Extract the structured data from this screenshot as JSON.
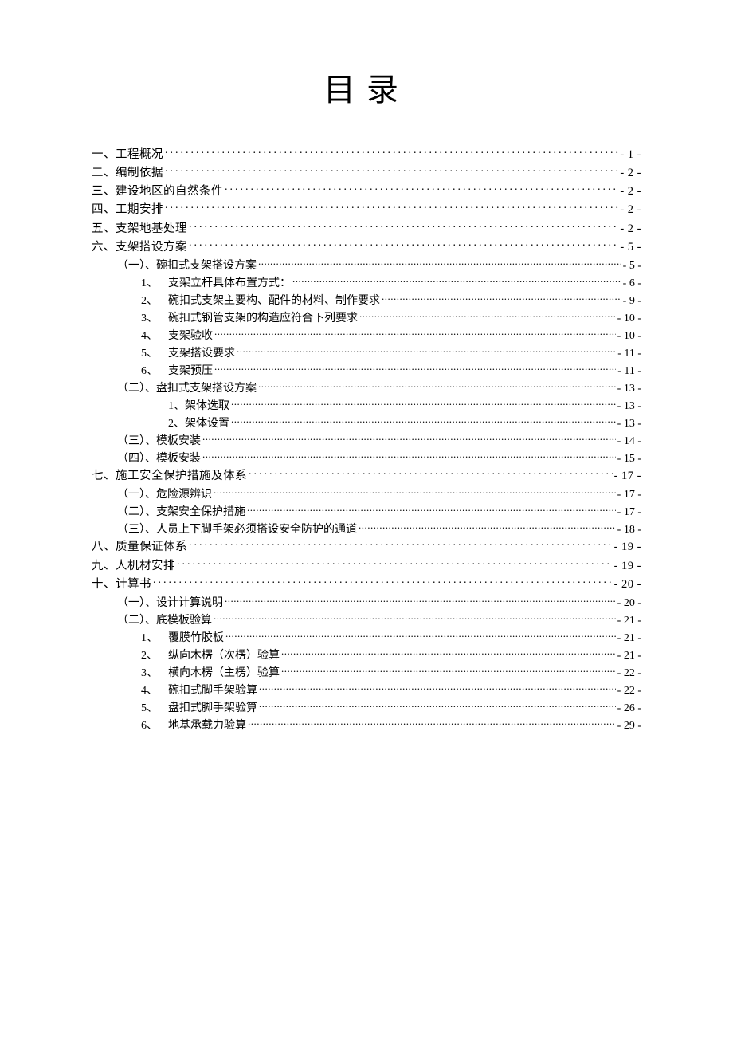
{
  "title": "目录",
  "entries": [
    {
      "level": "l1",
      "label": "一、工程概况",
      "page": "- 1 -"
    },
    {
      "level": "l1",
      "label": "二、编制依据",
      "page": "- 2 -"
    },
    {
      "level": "l1",
      "label": "三、建设地区的自然条件",
      "page": "- 2 -"
    },
    {
      "level": "l1",
      "label": "四、工期安排",
      "page": "- 2 -"
    },
    {
      "level": "l1",
      "label": "五、支架地基处理",
      "page": "- 2 -"
    },
    {
      "level": "l1",
      "label": "六、支架搭设方案",
      "page": "- 5 -"
    },
    {
      "level": "l2",
      "marker": "（一）、",
      "label": "碗扣式支架搭设方案",
      "page": "- 5 -"
    },
    {
      "level": "l3",
      "marker": "1、",
      "label": "支架立杆具体布置方式：",
      "page": "- 6 -"
    },
    {
      "level": "l3",
      "marker": "2、",
      "label": "碗扣式支架主要构、配件的材料、制作要求",
      "page": "- 9 -"
    },
    {
      "level": "l3",
      "marker": "3、",
      "label": "碗扣式钢管支架的构造应符合下列要求",
      "page": "- 10 -"
    },
    {
      "level": "l3",
      "marker": "4、",
      "label": "支架验收",
      "page": "- 10 -"
    },
    {
      "level": "l3",
      "marker": "5、",
      "label": "支架搭设要求",
      "page": "- 11 -"
    },
    {
      "level": "l3",
      "marker": "6、",
      "label": "支架预压",
      "page": "- 11 -"
    },
    {
      "level": "l2",
      "marker": "（二）、",
      "label": "盘扣式支架搭设方案",
      "page": "- 13 -"
    },
    {
      "level": "l2n",
      "marker": "",
      "label": "1、架体选取",
      "page": "- 13 -"
    },
    {
      "level": "l2n",
      "marker": "",
      "label": "2、架体设置",
      "page": "- 13 -"
    },
    {
      "level": "l2",
      "marker": "（三）、",
      "label": "模板安装",
      "page": "- 14 -"
    },
    {
      "level": "l2",
      "marker": "（四）、",
      "label": "模板安装",
      "page": "- 15 -"
    },
    {
      "level": "l1",
      "label": "七、施工安全保护措施及体系",
      "page": "- 17 -"
    },
    {
      "level": "l2",
      "marker": "（一）、",
      "label": "危险源辨识",
      "page": "- 17 -"
    },
    {
      "level": "l2",
      "marker": "（二）、",
      "label": "支架安全保护措施",
      "page": "- 17 -"
    },
    {
      "level": "l2",
      "marker": "（三）、",
      "label": "人员上下脚手架必须搭设安全防护的通道",
      "page": "- 18 -"
    },
    {
      "level": "l1",
      "label": "八、质量保证体系",
      "page": "- 19 -"
    },
    {
      "level": "l1",
      "label": "九、人机材安排",
      "page": "- 19 -"
    },
    {
      "level": "l1",
      "label": "十、计算书",
      "page": "- 20 -"
    },
    {
      "level": "l2",
      "marker": "（一）、",
      "label": "设计计算说明",
      "page": "- 20 -"
    },
    {
      "level": "l2",
      "marker": "（二）、",
      "label": "底模板验算",
      "page": "- 21 -"
    },
    {
      "level": "l3",
      "marker": "1、",
      "label": "覆膜竹胶板",
      "page": "- 21 -"
    },
    {
      "level": "l3",
      "marker": "2、",
      "label": "纵向木楞（次楞）验算",
      "page": "- 21 -"
    },
    {
      "level": "l3",
      "marker": "3、",
      "label": "横向木楞（主楞）验算",
      "page": "- 22 -"
    },
    {
      "level": "l3",
      "marker": "4、",
      "label": "碗扣式脚手架验算",
      "page": "- 22 -"
    },
    {
      "level": "l3",
      "marker": "5、",
      "label": "盘扣式脚手架验算",
      "page": "- 26 -"
    },
    {
      "level": "l3",
      "marker": "6、",
      "label": "地基承载力验算",
      "page": "- 29 -"
    }
  ]
}
